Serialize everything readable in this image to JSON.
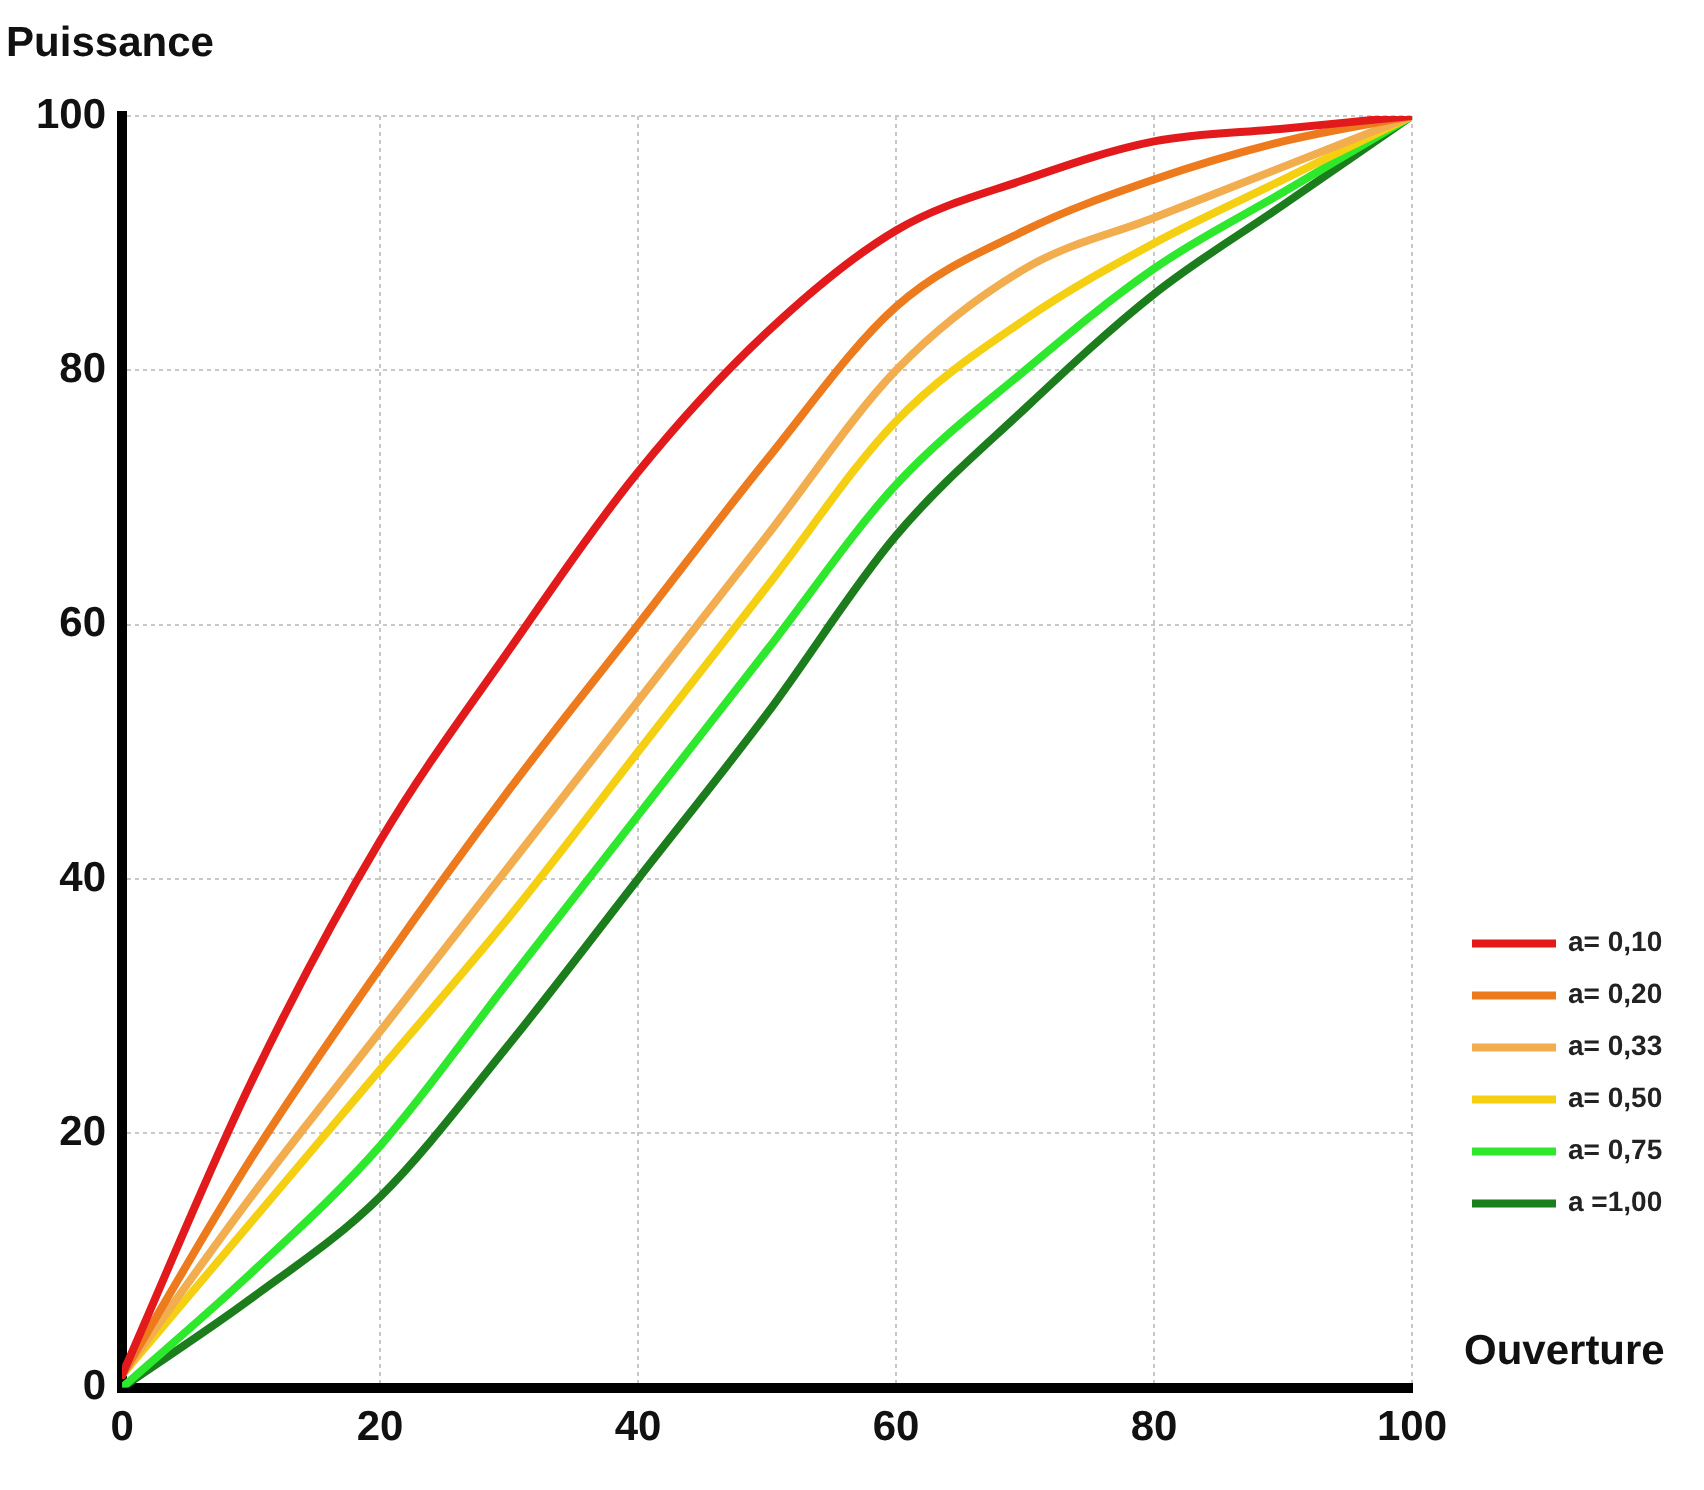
{
  "chart_data": {
    "type": "line",
    "xlabel": "Ouverture",
    "ylabel": "Puissance",
    "x": [
      0,
      10,
      20,
      30,
      40,
      50,
      60,
      70,
      80,
      90,
      100
    ],
    "series": [
      {
        "name": "a= 0,10",
        "color": "#e31a1c",
        "values": [
          1,
          24,
          43,
          58,
          72,
          83,
          91,
          95,
          98,
          99,
          100
        ]
      },
      {
        "name": "a= 0,20",
        "color": "#ee7a1e",
        "values": [
          1,
          18,
          33,
          47,
          60,
          73,
          85,
          91,
          95,
          98,
          100
        ]
      },
      {
        "name": "a= 0,33",
        "color": "#f2ad4e",
        "values": [
          1,
          15,
          28,
          41,
          54,
          67,
          80,
          88,
          92,
          96,
          100
        ]
      },
      {
        "name": "a= 0,50",
        "color": "#f5cf12",
        "values": [
          1,
          13,
          25,
          37,
          50,
          63,
          76,
          84,
          90,
          95,
          100
        ]
      },
      {
        "name": "a= 0,75",
        "color": "#2ee82e",
        "values": [
          0,
          9,
          19,
          32,
          45,
          58,
          71,
          80,
          88,
          94,
          100
        ]
      },
      {
        "name": "a =1,00",
        "color": "#1b7d1b",
        "values": [
          0,
          7,
          15,
          27,
          40,
          53,
          67,
          77,
          86,
          93,
          100
        ]
      }
    ],
    "xlim": [
      0,
      100
    ],
    "xticks": [
      0,
      20,
      40,
      60,
      80,
      100
    ],
    "ylim": [
      0,
      100
    ],
    "yticks": [
      0,
      20,
      40,
      60,
      80,
      100
    ],
    "grid": true,
    "legend": "bottom right",
    "marker": "none",
    "line_style": "solid"
  }
}
